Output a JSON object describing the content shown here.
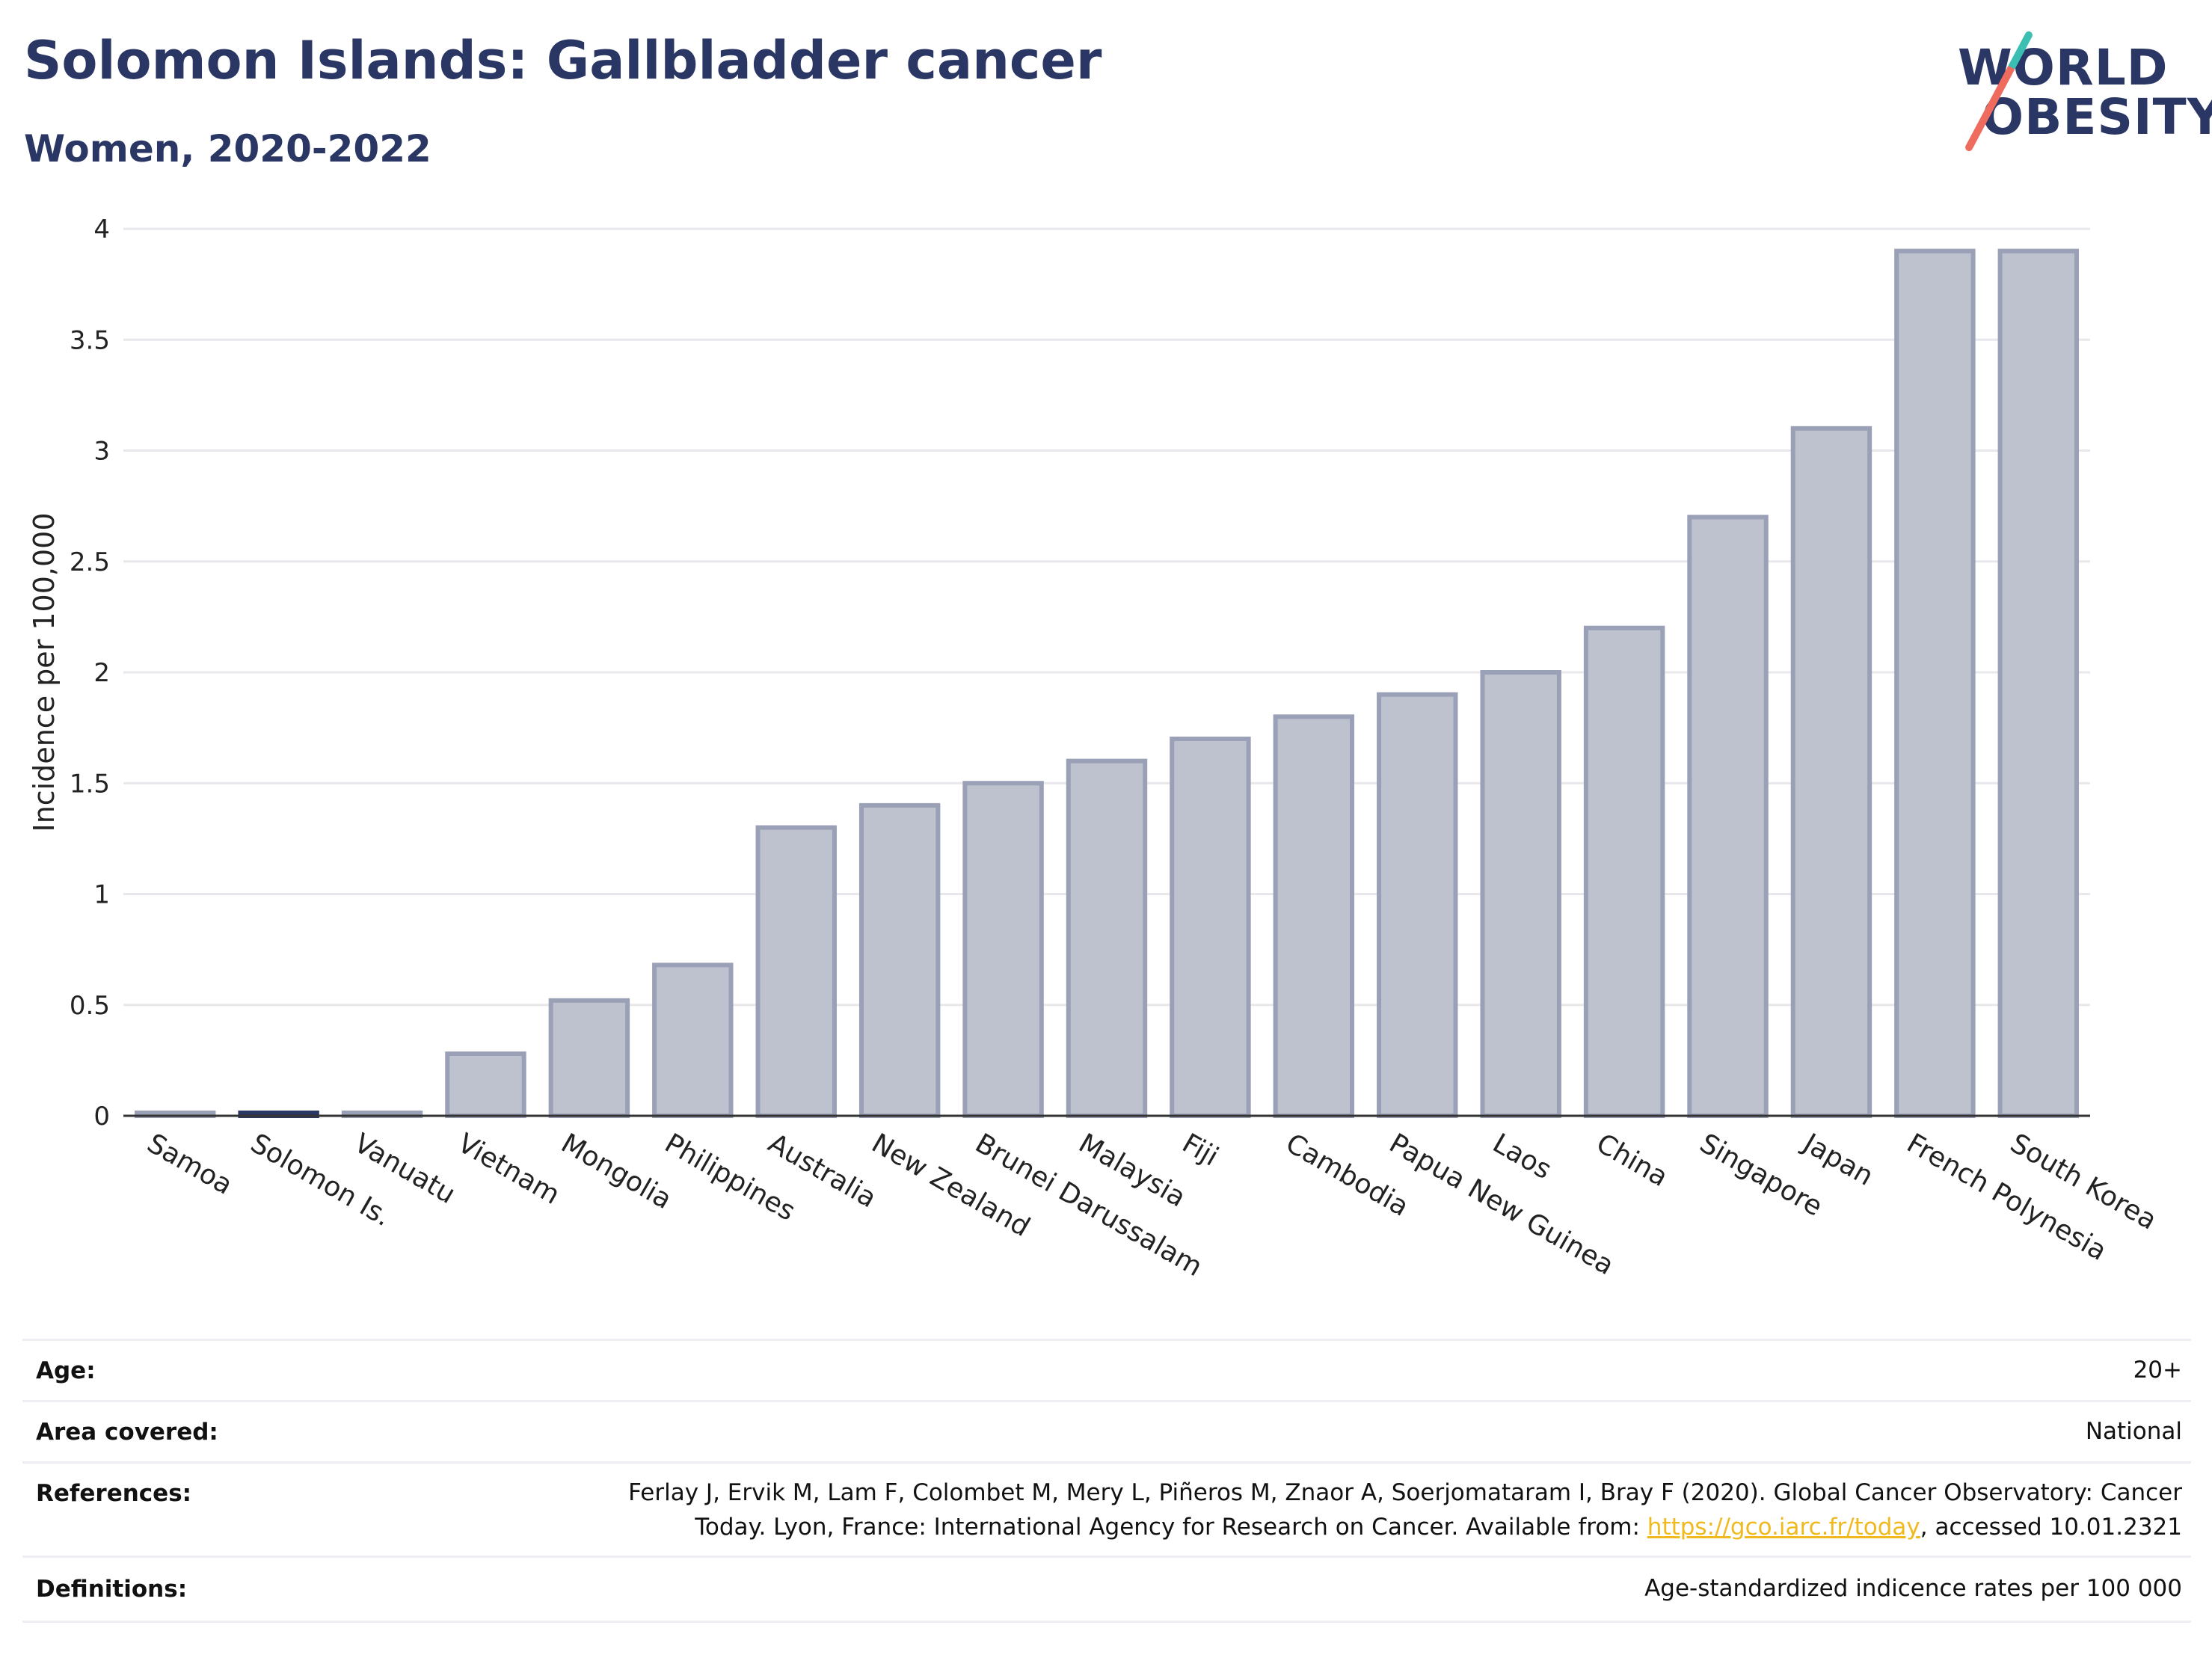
{
  "header": {
    "title": "Solomon Islands: Gallbladder cancer",
    "subtitle": "Women, 2020-2022"
  },
  "logo": {
    "line1": "WORLD",
    "line2": "OBESITY"
  },
  "colors": {
    "highlight": "#2a3663",
    "bar_fill": "#bec2cf",
    "bar_stroke": "#9aa0b6",
    "title": "#2a3663",
    "grid": "#e8e8ec"
  },
  "chart_data": {
    "type": "bar",
    "ylabel": "Incidence per 100,000",
    "xlabel": "",
    "ylim": [
      0,
      4
    ],
    "yticks": [
      "0",
      "0.5",
      "1",
      "1.5",
      "2",
      "2.5",
      "3",
      "3.5",
      "4"
    ],
    "ytick_values": [
      0,
      0.5,
      1,
      1.5,
      2,
      2.5,
      3,
      3.5,
      4
    ],
    "grid": true,
    "highlight_category": "Solomon Is.",
    "categories": [
      "Samoa",
      "Solomon Is.",
      "Vanuatu",
      "Vietnam",
      "Mongolia",
      "Philippines",
      "Australia",
      "New Zealand",
      "Brunei Darussalam",
      "Malaysia",
      "Fiji",
      "Cambodia",
      "Papua New Guinea",
      "Laos",
      "China",
      "Singapore",
      "Japan",
      "French Polynesia",
      "South Korea"
    ],
    "values": [
      0,
      0,
      0,
      0.28,
      0.52,
      0.68,
      1.3,
      1.4,
      1.5,
      1.6,
      1.7,
      1.8,
      1.9,
      2.0,
      2.2,
      2.7,
      3.1,
      3.9,
      3.9
    ]
  },
  "meta": {
    "age_label": "Age:",
    "age_value": "20+",
    "area_label": "Area covered:",
    "area_value": "National",
    "references_label": "References:",
    "references_line1": "Ferlay J, Ervik M, Lam F, Colombet M, Mery L, Piñeros M, Znaor A, Soerjomataram I, Bray F (2020). Global Cancer Observatory: Cancer",
    "references_line2_pre": "Today. Lyon, France: International Agency for Research on Cancer. Available from: ",
    "references_link": "https://gco.iarc.fr/today",
    "references_line2_post": ", accessed 10.01.2321",
    "definitions_label": "Definitions:",
    "definitions_value": "Age-standardized indicence rates per 100 000"
  }
}
